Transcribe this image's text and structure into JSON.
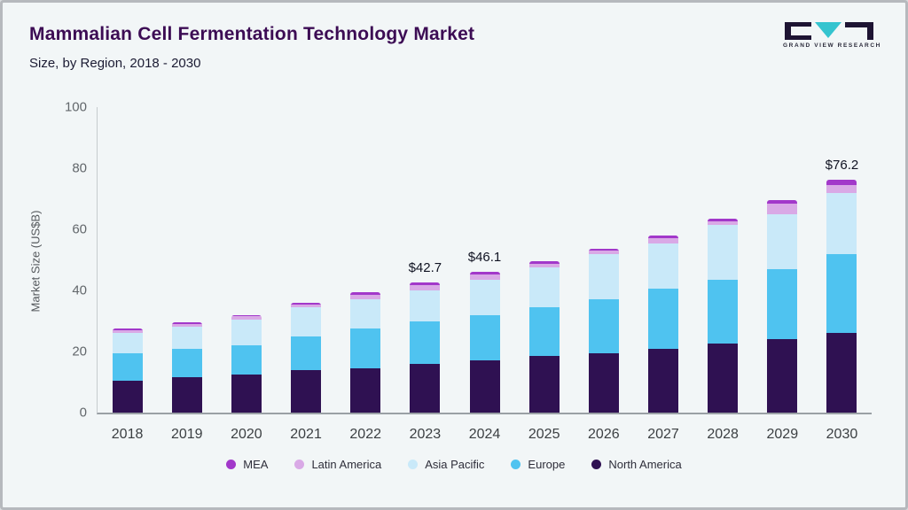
{
  "header": {
    "title": "Mammalian Cell Fermentation Technology Market",
    "subtitle": "Size, by Region, 2018 - 2030",
    "logo_text": "GRAND VIEW RESEARCH"
  },
  "colors": {
    "title": "#3c0c54",
    "background": "#f2f6f7",
    "logo_teal": "#35c4cf",
    "logo_dark": "#1e1433"
  },
  "chart_data": {
    "type": "bar",
    "stacked": true,
    "title": "Mammalian Cell Fermentation Technology Market",
    "xlabel": "",
    "ylabel": "Market Size (US$B)",
    "ylim": [
      0,
      100
    ],
    "yticks": [
      0,
      20,
      40,
      60,
      80,
      100
    ],
    "categories": [
      "2018",
      "2019",
      "2020",
      "2021",
      "2022",
      "2023",
      "2024",
      "2025",
      "2026",
      "2027",
      "2028",
      "2029",
      "2030"
    ],
    "series": [
      {
        "name": "North America",
        "color": "#2f1152",
        "values": [
          10.5,
          11.5,
          12.5,
          14.0,
          14.5,
          16.0,
          17.2,
          18.5,
          19.5,
          21.0,
          22.5,
          24.0,
          26.0
        ]
      },
      {
        "name": "Europe",
        "color": "#4fc3f0",
        "values": [
          9.0,
          9.5,
          9.5,
          11.0,
          13.0,
          14.0,
          14.8,
          16.0,
          17.5,
          19.5,
          21.0,
          23.0,
          26.0
        ]
      },
      {
        "name": "Asia Pacific",
        "color": "#c9e9f9",
        "values": [
          6.5,
          7.0,
          8.5,
          9.5,
          9.5,
          10.0,
          11.5,
          13.0,
          15.0,
          15.0,
          18.0,
          18.0,
          20.0
        ]
      },
      {
        "name": "Latin America",
        "color": "#d9a9e6",
        "values": [
          1.0,
          1.0,
          1.0,
          1.0,
          1.5,
          1.7,
          1.6,
          1.2,
          1.0,
          1.5,
          1.2,
          3.5,
          2.5
        ]
      },
      {
        "name": "MEA",
        "color": "#a238ca",
        "values": [
          0.5,
          0.5,
          0.5,
          0.5,
          1.0,
          1.0,
          1.0,
          0.8,
          0.7,
          1.0,
          0.8,
          1.0,
          1.7
        ]
      }
    ],
    "annotations": {
      "2023": "$42.7",
      "2024": "$46.1",
      "2030": "$76.2"
    },
    "legend_position": "bottom",
    "grid": false
  }
}
